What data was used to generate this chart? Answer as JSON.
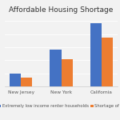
{
  "title": "Affordable Housing Shortage",
  "title_fontsize": 6.5,
  "categories": [
    "New Jersey",
    "New York",
    "California"
  ],
  "series": [
    {
      "label": "Extremely low income renter households",
      "color": "#4472C4",
      "values": [
        1.0,
        2.8,
        4.8
      ]
    },
    {
      "label": "Shortage of re...",
      "color": "#ED7D31",
      "values": [
        0.7,
        2.1,
        3.7
      ]
    }
  ],
  "tick_fontsize": 4.2,
  "legend_fontsize": 3.8,
  "background_color": "#f2f2f2",
  "grid_color": "#ffffff",
  "bar_width": 0.28,
  "ylim": [
    0,
    5.5
  ],
  "grid_vals": [
    1,
    2,
    3,
    4,
    5
  ]
}
